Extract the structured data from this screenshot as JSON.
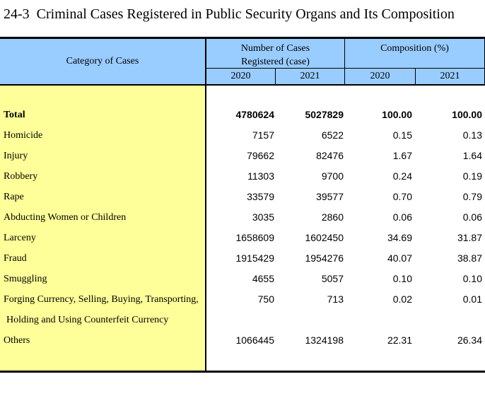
{
  "title": "24-3  Criminal Cases Registered in Public Security Organs and Its Composition",
  "table": {
    "header": {
      "category": "Category of Cases",
      "number_group_line1": "Number of Cases",
      "number_group_line2": "Registered (case)",
      "composition_group": "Composition (%)",
      "years": [
        "2020",
        "2021",
        "2020",
        "2021"
      ]
    },
    "rows": [
      {
        "category": "Total",
        "values": [
          "4780624",
          "5027829",
          "100.00",
          "100.00"
        ]
      },
      {
        "category": "Homicide",
        "values": [
          "7157",
          "6522",
          "0.15",
          "0.13"
        ]
      },
      {
        "category": "Injury",
        "values": [
          "79662",
          "82476",
          "1.67",
          "1.64"
        ]
      },
      {
        "category": "Robbery",
        "values": [
          "11303",
          "9700",
          "0.24",
          "0.19"
        ]
      },
      {
        "category": "Rape",
        "values": [
          "33579",
          "39577",
          "0.70",
          "0.79"
        ]
      },
      {
        "category": "Abducting Women or Children",
        "values": [
          "3035",
          "2860",
          "0.06",
          "0.06"
        ]
      },
      {
        "category": "Larceny",
        "values": [
          "1658609",
          "1602450",
          "34.69",
          "31.87"
        ]
      },
      {
        "category": "Fraud",
        "values": [
          "1915429",
          "1954276",
          "40.07",
          "38.87"
        ]
      },
      {
        "category": "Smuggling",
        "values": [
          "4655",
          "5057",
          "0.10",
          "0.10"
        ]
      },
      {
        "category": "Forging Currency, Selling, Buying, Transporting,",
        "category_line2": "Holding and Using Counterfeit Currency",
        "values": [
          "750",
          "713",
          "0.02",
          "0.01"
        ]
      },
      {
        "category": "Others",
        "values": [
          "1066445",
          "1324198",
          "22.31",
          "26.34"
        ]
      }
    ]
  },
  "colors": {
    "header_bg": "#99CCFF",
    "category_bg": "#FFFF99",
    "border": "#000000",
    "text": "#000000"
  }
}
